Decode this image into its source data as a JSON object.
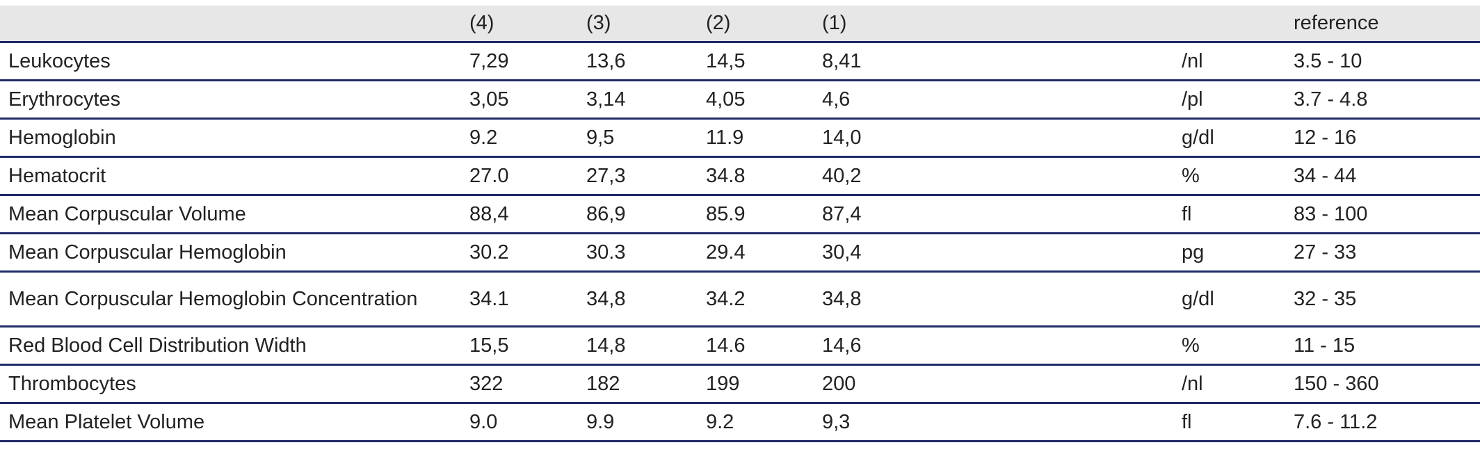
{
  "table": {
    "headers": [
      "",
      "(4)",
      "(3)",
      "(2)",
      "(1)",
      "",
      "reference"
    ],
    "rows": [
      {
        "name": "Leukocytes",
        "v4": "7,29",
        "v3": "13,6",
        "v2": "14,5",
        "v1": "8,41",
        "unit": "/nl",
        "reference": "3.5 - 10"
      },
      {
        "name": "Erythrocytes",
        "v4": "3,05",
        "v3": "3,14",
        "v2": "4,05",
        "v1": "4,6",
        "unit": "/pl",
        "reference": "3.7 - 4.8"
      },
      {
        "name": "Hemoglobin",
        "v4": "9.2",
        "v3": "9,5",
        "v2": "11.9",
        "v1": "14,0",
        "unit": "g/dl",
        "reference": "12 - 16"
      },
      {
        "name": "Hematocrit",
        "v4": "27.0",
        "v3": "27,3",
        "v2": "34.8",
        "v1": "40,2",
        "unit": "%",
        "reference": "34 - 44"
      },
      {
        "name": "Mean Corpuscular Volume",
        "v4": "88,4",
        "v3": "86,9",
        "v2": "85.9",
        "v1": "87,4",
        "unit": "fl",
        "reference": "83 - 100"
      },
      {
        "name": "Mean Corpuscular Hemoglobin",
        "v4": "30.2",
        "v3": "30.3",
        "v2": "29.4",
        "v1": "30,4",
        "unit": "pg",
        "reference": "27 - 33"
      },
      {
        "name": "Mean Corpuscular Hemoglobin Concentration",
        "v4": "34.1",
        "v3": "34,8",
        "v2": "34.2",
        "v1": "34,8",
        "unit": "g/dl",
        "reference": "32 - 35"
      },
      {
        "name": "Red Blood Cell Distribution Width",
        "v4": "15,5",
        "v3": "14,8",
        "v2": "14.6",
        "v1": "14,6",
        "unit": "%",
        "reference": "11 - 15"
      },
      {
        "name": "Thrombocytes",
        "v4": "322",
        "v3": "182",
        "v2": "199",
        "v1": "200",
        "unit": "/nl",
        "reference": "150 - 360"
      },
      {
        "name": "Mean Platelet Volume",
        "v4": "9.0",
        "v3": "9.9",
        "v2": "9.2",
        "v1": "9,3",
        "unit": "fl",
        "reference": "7.6 - 11.2"
      }
    ]
  },
  "colors": {
    "header_background": "#e7e7e7",
    "rule": "#1f2a66",
    "text": "#222222"
  }
}
